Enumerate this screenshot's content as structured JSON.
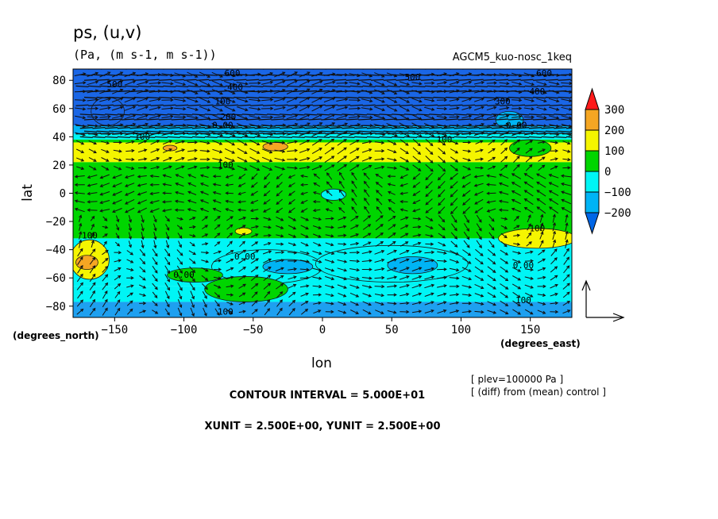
{
  "header": {
    "title": "ps, (u,v)",
    "units": "(Pa, (m s-1, m s-1))",
    "experiment": "AGCM5_kuo-nosc_1keq"
  },
  "footer": {
    "contour_interval": "CONTOUR INTERVAL = 5.000E+01",
    "vector_units": "XUNIT = 2.500E+00, YUNIT = 2.500E+00",
    "plev": "[ plev=100000 Pa ]",
    "diff_note": "[ (diff) from (mean) control ]"
  },
  "chart_data": {
    "type": "heatmap",
    "title": "ps, (u,v)",
    "subtitle": "(Pa, (m s-1, m s-1))",
    "xlabel": "lon",
    "ylabel": "lat",
    "x_unit_label": "(degrees_east)",
    "y_unit_label": "(degrees_north)",
    "xlim": [
      -180,
      180
    ],
    "ylim": [
      -88,
      88
    ],
    "x_ticks": [
      -150,
      -100,
      -50,
      0,
      50,
      100,
      150
    ],
    "x_tick_labels": [
      "−150",
      "−100",
      "−50",
      "0",
      "50",
      "100",
      "150"
    ],
    "y_ticks": [
      80,
      60,
      40,
      20,
      0,
      -20,
      -40,
      -60,
      -80
    ],
    "y_tick_labels": [
      "80",
      "60",
      "40",
      "20",
      "0",
      "−20",
      "−40",
      "−60",
      "−80"
    ],
    "colorbar": {
      "levels": [
        300,
        200,
        100,
        0,
        -100,
        -200
      ],
      "labels": [
        "300",
        "200",
        "100",
        "0",
        "−100",
        "−200"
      ],
      "colors": [
        "#ff1a1a",
        "#f5a623",
        "#f5f500",
        "#00d500",
        "#00f5f5",
        "#00b4f5",
        "#0066e6"
      ]
    },
    "bands": [
      {
        "lat_top": 88,
        "lat_bottom": 48,
        "value": -250,
        "color": "#1a66e6"
      },
      {
        "lat_top": 48,
        "lat_bottom": 42,
        "value": -150,
        "color": "#00b4f5"
      },
      {
        "lat_top": 42,
        "lat_bottom": 38,
        "value": -50,
        "color": "#00f5f5"
      },
      {
        "lat_top": 38,
        "lat_bottom": 36,
        "value": 50,
        "color": "#00d500"
      },
      {
        "lat_top": 36,
        "lat_bottom": 22,
        "value": 150,
        "color": "#f5f500"
      },
      {
        "lat_top": 22,
        "lat_bottom": -32,
        "value": 50,
        "color": "#00d500"
      },
      {
        "lat_top": -32,
        "lat_bottom": -66,
        "value": -50,
        "color": "#00f5f5"
      },
      {
        "lat_top": -66,
        "lat_bottom": -77,
        "value": -50,
        "color": "#00f5f5"
      },
      {
        "lat_top": -77,
        "lat_bottom": -88,
        "value": -150,
        "color": "#1ea0f0"
      }
    ],
    "patches": [
      {
        "lon": -168,
        "lat": -47,
        "rlon": 14,
        "rlat": 14,
        "color": "#f5f500"
      },
      {
        "lon": -170,
        "lat": -49,
        "rlon": 8,
        "rlat": 5,
        "color": "#f5a623"
      },
      {
        "lon": -40,
        "lat": -52,
        "rlon": 40,
        "rlat": 12,
        "color": "#00f5f5"
      },
      {
        "lon": -25,
        "lat": -52,
        "rlon": 18,
        "rlat": 5,
        "color": "#00b4f5"
      },
      {
        "lon": 50,
        "lat": -50,
        "rlon": 55,
        "rlat": 13,
        "color": "#00f5f5"
      },
      {
        "lon": 65,
        "lat": -51,
        "rlon": 18,
        "rlat": 6,
        "color": "#00b4f5"
      },
      {
        "lon": 155,
        "lat": -32,
        "rlon": 28,
        "rlat": 7,
        "color": "#f5f500"
      },
      {
        "lon": -55,
        "lat": -68,
        "rlon": 30,
        "rlat": 9,
        "color": "#00d500"
      },
      {
        "lon": -92,
        "lat": -58,
        "rlon": 20,
        "rlat": 5,
        "color": "#00d500"
      },
      {
        "lon": 8,
        "lat": -1,
        "rlon": 9,
        "rlat": 4,
        "color": "#00f5f5"
      },
      {
        "lon": -110,
        "lat": 32,
        "rlon": 5,
        "rlat": 2,
        "color": "#f5a623"
      },
      {
        "lon": -34,
        "lat": 33,
        "rlon": 9,
        "rlat": 3,
        "color": "#f5a623"
      },
      {
        "lon": -57,
        "lat": -27,
        "rlon": 6,
        "rlat": 2.5,
        "color": "#f5f500"
      },
      {
        "lon": 150,
        "lat": 32,
        "rlon": 15,
        "rlat": 6,
        "color": "#00d500"
      },
      {
        "lon": 135,
        "lat": 52,
        "rlon": 10,
        "rlat": 6,
        "color": "#00b4f5"
      },
      {
        "lon": -155,
        "lat": 58,
        "rlon": 12,
        "rlat": 10,
        "color": "#1a66e6"
      }
    ],
    "contour_labels": [
      {
        "lon": -150,
        "lat": 75,
        "text": "500"
      },
      {
        "lon": -65,
        "lat": 83,
        "text": "600"
      },
      {
        "lon": -63,
        "lat": 73,
        "text": "400"
      },
      {
        "lon": -72,
        "lat": 63,
        "text": "100"
      },
      {
        "lon": -68,
        "lat": 52,
        "text": "200"
      },
      {
        "lon": -72,
        "lat": 46,
        "text": "0.00"
      },
      {
        "lon": -130,
        "lat": 38,
        "text": "100"
      },
      {
        "lon": 65,
        "lat": 80,
        "text": "500"
      },
      {
        "lon": 160,
        "lat": 83,
        "text": "600"
      },
      {
        "lon": 155,
        "lat": 70,
        "text": "400"
      },
      {
        "lon": 130,
        "lat": 63,
        "text": "300"
      },
      {
        "lon": 140,
        "lat": 46,
        "text": "0.00"
      },
      {
        "lon": 88,
        "lat": 36,
        "text": "100"
      },
      {
        "lon": -70,
        "lat": 18,
        "text": "100"
      },
      {
        "lon": -168,
        "lat": -32,
        "text": "100"
      },
      {
        "lon": -56,
        "lat": -47,
        "text": "0.00"
      },
      {
        "lon": -100,
        "lat": -60,
        "text": "0.00"
      },
      {
        "lon": 155,
        "lat": -27,
        "text": "100"
      },
      {
        "lon": 145,
        "lat": -53,
        "text": "0.00"
      },
      {
        "lon": 145,
        "lat": -78,
        "text": "100"
      },
      {
        "lon": -70,
        "lat": -86,
        "text": "100"
      }
    ],
    "grid": false,
    "legend": "right"
  }
}
